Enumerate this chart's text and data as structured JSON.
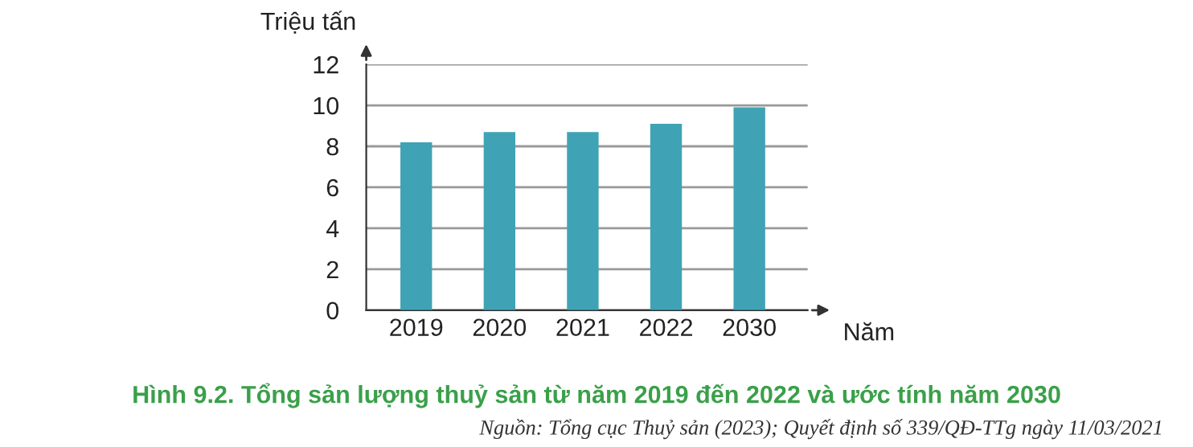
{
  "chart_data": {
    "type": "bar",
    "title": "Hình 9.2. Tổng sản lượng thuỷ sản từ năm 2019 đến 2022 và ước tính năm 2030",
    "xlabel": "Năm",
    "ylabel": "Triệu tấn",
    "categories": [
      "2019",
      "2020",
      "2021",
      "2022",
      "2030"
    ],
    "values": [
      8.2,
      8.7,
      8.7,
      9.1,
      9.9
    ],
    "color": "#3fa3b5",
    "ylim": [
      0,
      12
    ],
    "yticks": [
      0,
      2,
      4,
      6,
      8,
      10,
      12
    ],
    "grid": "y",
    "annotations": [
      "Nguồn: Tổng cục Thuỷ sản (2023); Quyết định số 339/QĐ-TTg ngày 11/03/2021"
    ]
  }
}
